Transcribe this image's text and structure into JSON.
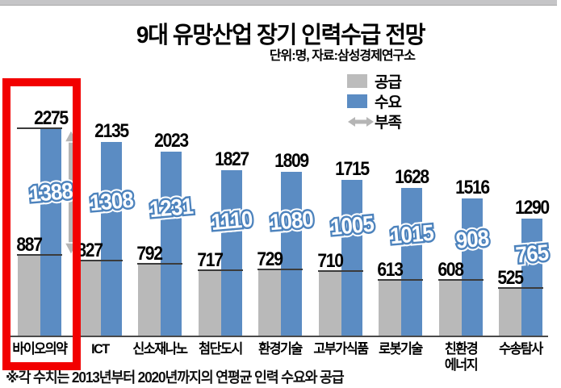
{
  "page": {
    "title": "9대 유망산업 장기 인력수급 전망",
    "subtitle": "단위:명, 자료:삼성경제연구소",
    "footnote": "※각 수치는 2013년부터 2020년까지의 연평균 인력 수요와 공급"
  },
  "legend": {
    "supply_label": "공급",
    "demand_label": "수요",
    "shortage_label": "부족"
  },
  "colors": {
    "demand_blue": "#5b8cc3",
    "supply_gray": "#b9b9b9",
    "shortage_outline_blue": "#4d83bd",
    "arrow_gray": "#b5b5b5",
    "highlight_red": "#f20000",
    "top_strip_gray": "#c5c5c7"
  },
  "chart_data": {
    "type": "bar",
    "title": "9대 유망산업 장기 인력수급 전망",
    "unit_note": "단위:명",
    "source": "삼성경제연구소",
    "categories": [
      "바이오의약",
      "ICT",
      "신소재나노",
      "첨단도시",
      "환경기술",
      "고부가식품",
      "로봇기술",
      "친환경\n에너지",
      "수송탐사"
    ],
    "series": [
      {
        "name": "공급",
        "values": [
          887,
          827,
          792,
          717,
          729,
          710,
          613,
          608,
          525
        ]
      },
      {
        "name": "수요",
        "values": [
          2275,
          2135,
          2023,
          1827,
          1809,
          1715,
          1628,
          1516,
          1290
        ]
      },
      {
        "name": "부족",
        "values": [
          1388,
          1308,
          1231,
          1110,
          1080,
          1005,
          1015,
          908,
          765
        ]
      }
    ],
    "highlighted_category": "바이오의약",
    "ylim": [
      0,
      2275
    ],
    "grid": false,
    "legend_position": "top-right"
  }
}
